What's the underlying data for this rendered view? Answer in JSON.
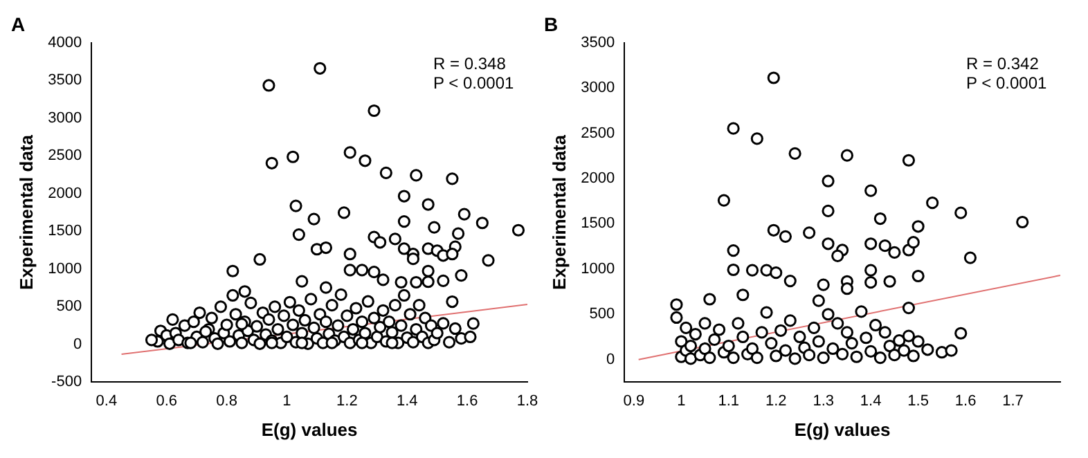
{
  "chart_data": [
    {
      "type": "scatter",
      "title": "A",
      "xlabel": "E(g) values",
      "ylabel": "Experimental data",
      "xlim": [
        0.35,
        1.8
      ],
      "ylim": [
        -500,
        4000
      ],
      "xticks": [
        0.4,
        0.6,
        0.8,
        1.0,
        1.2,
        1.4,
        1.6,
        1.8
      ],
      "yticks": [
        -500,
        0,
        500,
        1000,
        1500,
        2000,
        2500,
        3000,
        3500,
        4000
      ],
      "grid": false,
      "legend": false,
      "annotations": [
        "R = 0.348",
        "P < 0.0001"
      ],
      "series": [
        {
          "marker": "circle",
          "color": "#000000",
          "x": [
            0.94,
            1.11,
            1.29,
            0.95,
            1.02,
            1.21,
            1.26,
            1.33,
            1.43,
            1.55,
            1.39,
            1.03,
            1.09,
            1.19,
            1.47,
            1.59,
            1.65,
            1.77,
            1.04,
            1.39,
            1.49,
            1.57,
            1.29,
            1.31,
            1.36,
            1.1,
            1.13,
            1.21,
            1.39,
            1.42,
            1.47,
            1.5,
            1.52,
            1.56,
            1.55,
            1.42,
            1.67,
            0.91,
            0.82,
            1.21,
            1.25,
            1.29,
            1.32,
            1.38,
            1.43,
            1.47,
            1.47,
            1.52,
            1.58,
            1.05,
            1.13,
            0.86,
            1.55,
            1.62,
            0.57,
            0.58,
            0.6,
            0.61,
            0.63,
            0.64,
            0.66,
            0.67,
            0.69,
            0.7,
            0.71,
            0.72,
            0.74,
            0.75,
            0.76,
            0.77,
            0.78,
            0.79,
            0.8,
            0.81,
            0.82,
            0.83,
            0.84,
            0.85,
            0.86,
            0.87,
            0.88,
            0.89,
            0.9,
            0.91,
            0.92,
            0.93,
            0.94,
            0.95,
            0.96,
            0.97,
            0.98,
            0.99,
            1.0,
            1.01,
            1.02,
            1.03,
            1.04,
            1.05,
            1.06,
            1.07,
            1.08,
            1.09,
            1.1,
            1.11,
            1.12,
            1.13,
            1.14,
            1.15,
            1.16,
            1.17,
            1.18,
            1.19,
            1.2,
            1.21,
            1.22,
            1.23,
            1.24,
            1.25,
            1.26,
            1.27,
            1.28,
            1.29,
            1.3,
            1.31,
            1.32,
            1.33,
            1.34,
            1.35,
            1.36,
            1.37,
            1.38,
            1.39,
            1.4,
            1.41,
            1.42,
            1.43,
            1.44,
            1.45,
            1.46,
            1.47,
            1.48,
            1.49,
            1.5,
            1.52,
            1.54,
            1.56,
            1.58,
            1.61,
            0.55,
            0.62,
            0.68,
            0.73,
            0.85,
            0.95,
            1.05,
            1.15,
            1.25,
            1.35
          ],
          "values": [
            3433,
            3659,
            3098,
            2403,
            2486,
            2544,
            2435,
            2274,
            2242,
            2196,
            1965,
            1836,
            1662,
            1746,
            1855,
            1726,
            1610,
            1514,
            1456,
            1630,
            1552,
            1469,
            1423,
            1353,
            1398,
            1262,
            1282,
            1198,
            1269,
            1198,
            1269,
            1243,
            1179,
            1295,
            1198,
            1134,
            1114,
            1127,
            973,
            986,
            986,
            960,
            857,
            824,
            824,
            973,
            831,
            844,
            915,
            837,
            754,
            702,
            567,
            277,
            40,
            180,
            120,
            10,
            150,
            60,
            250,
            20,
            300,
            100,
            420,
            30,
            200,
            350,
            80,
            10,
            500,
            150,
            260,
            40,
            650,
            400,
            120,
            20,
            300,
            180,
            550,
            60,
            240,
            10,
            420,
            130,
            330,
            50,
            500,
            200,
            20,
            380,
            100,
            560,
            260,
            30,
            450,
            150,
            320,
            10,
            600,
            220,
            80,
            400,
            20,
            300,
            140,
            520,
            50,
            250,
            660,
            100,
            380,
            20,
            200,
            480,
            60,
            300,
            150,
            570,
            20,
            350,
            100,
            230,
            450,
            40,
            300,
            160,
            520,
            20,
            250,
            650,
            90,
            400,
            30,
            200,
            520,
            100,
            350,
            20,
            250,
            60,
            150,
            280,
            30,
            210,
            80,
            100,
            60,
            330,
            20,
            170,
            270,
            20,
            20,
            20,
            20,
            20
          ]
        },
        {
          "type": "line",
          "marker": "none",
          "color": "#e07070",
          "x": [
            0.45,
            1.8
          ],
          "values": [
            -130,
            530
          ]
        }
      ]
    },
    {
      "type": "scatter",
      "title": "B",
      "xlabel": "E(g) values",
      "ylabel": "Experimental data",
      "xlim": [
        0.88,
        1.8
      ],
      "ylim": [
        -250,
        3500
      ],
      "xticks": [
        0.9,
        1.0,
        1.1,
        1.2,
        1.3,
        1.4,
        1.5,
        1.6,
        1.7
      ],
      "yticks": [
        0,
        500,
        1000,
        1500,
        2000,
        2500,
        3000,
        3500
      ],
      "grid": false,
      "legend": false,
      "annotations": [
        "R = 0.342",
        "P < 0.0001"
      ],
      "series": [
        {
          "marker": "circle",
          "color": "#000000",
          "x": [
            1.195,
            1.11,
            1.16,
            1.24,
            1.35,
            1.48,
            1.31,
            1.4,
            1.09,
            1.31,
            1.53,
            1.59,
            1.72,
            1.42,
            1.5,
            1.195,
            1.22,
            1.27,
            1.31,
            1.34,
            1.33,
            1.4,
            1.43,
            1.45,
            1.48,
            1.49,
            1.61,
            1.11,
            1.11,
            1.15,
            1.18,
            1.2,
            1.23,
            1.3,
            1.35,
            1.35,
            1.4,
            1.4,
            1.44,
            1.5,
            1.48,
            0.99,
            0.99,
            1.06,
            1.13,
            1.29,
            1.0,
            1.0,
            1.01,
            1.01,
            1.02,
            1.02,
            1.03,
            1.04,
            1.05,
            1.05,
            1.06,
            1.07,
            1.08,
            1.09,
            1.1,
            1.11,
            1.12,
            1.13,
            1.14,
            1.15,
            1.16,
            1.17,
            1.18,
            1.19,
            1.2,
            1.21,
            1.22,
            1.23,
            1.24,
            1.25,
            1.26,
            1.27,
            1.28,
            1.29,
            1.3,
            1.31,
            1.32,
            1.33,
            1.34,
            1.35,
            1.36,
            1.37,
            1.38,
            1.39,
            1.4,
            1.41,
            1.42,
            1.43,
            1.44,
            1.45,
            1.46,
            1.47,
            1.48,
            1.49,
            1.5,
            1.52,
            1.55,
            1.57,
            1.59
          ],
          "values": [
            3111,
            2552,
            2440,
            2275,
            2254,
            2200,
            1971,
            1865,
            1758,
            1641,
            1731,
            1620,
            1518,
            1556,
            1470,
            1428,
            1359,
            1401,
            1279,
            1209,
            1145,
            1279,
            1257,
            1183,
            1209,
            1295,
            1124,
            1204,
            991,
            986,
            986,
            959,
            868,
            826,
            863,
            783,
            986,
            852,
            863,
            922,
            570,
            607,
            464,
            666,
            714,
            650,
            30,
            200,
            100,
            350,
            10,
            150,
            280,
            50,
            400,
            120,
            20,
            220,
            330,
            80,
            150,
            20,
            400,
            250,
            60,
            120,
            20,
            300,
            520,
            180,
            40,
            320,
            100,
            430,
            10,
            250,
            130,
            50,
            350,
            200,
            20,
            500,
            120,
            400,
            60,
            300,
            180,
            30,
            530,
            240,
            90,
            380,
            20,
            300,
            150,
            50,
            210,
            100,
            260,
            40,
            200,
            110,
            80,
            100,
            290
          ]
        },
        {
          "type": "line",
          "marker": "none",
          "color": "#e07070",
          "x": [
            0.91,
            1.8
          ],
          "values": [
            0,
            930
          ]
        }
      ]
    }
  ]
}
